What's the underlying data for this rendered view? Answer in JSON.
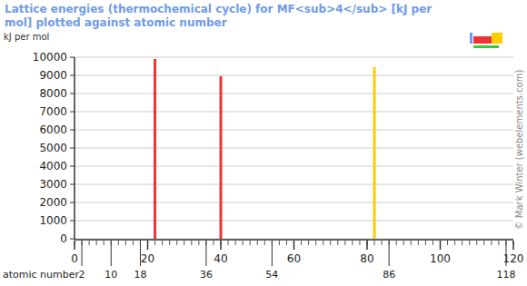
{
  "chart_data": {
    "type": "bar",
    "title": "Lattice energies (thermochemical cycle) for MF<sub>4</sub> [kJ per mol] plotted against atomic number",
    "y_label": "kJ per mol",
    "x_label": "atomic number",
    "credit": "© Mark Winter (webelements.com)",
    "x": [
      22,
      40,
      82
    ],
    "values": [
      9900,
      8950,
      9460
    ],
    "colors": [
      "#ee3333",
      "#ee3333",
      "#ffcc00"
    ],
    "xlim": [
      0,
      120
    ],
    "xticks": [
      0,
      20,
      40,
      60,
      80,
      100,
      120
    ],
    "secondary_xticks": [
      2,
      10,
      18,
      36,
      54,
      86,
      118
    ],
    "ylim": [
      0,
      10000
    ],
    "yticks": [
      0,
      1000,
      2000,
      3000,
      4000,
      5000,
      6000,
      7000,
      8000,
      9000,
      10000
    ],
    "grid": true
  }
}
